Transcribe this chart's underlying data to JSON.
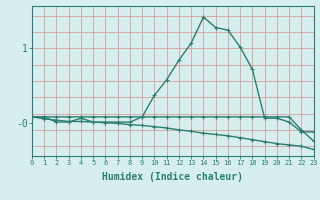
{
  "xlabel": "Humidex (Indice chaleur)",
  "bg_color": "#d6efee",
  "line_color": "#2d7d72",
  "grid_color_v": "#d4a0a0",
  "grid_color_h": "#d4a0a0",
  "ytick_labels": [
    "1",
    "-0"
  ],
  "ytick_positions": [
    1.0,
    -0.15
  ],
  "line1_x": [
    0,
    1,
    2,
    3,
    4,
    5,
    6,
    7,
    8,
    9,
    10,
    11,
    12,
    13,
    14,
    15,
    16,
    17,
    18,
    19,
    20,
    21,
    22,
    23
  ],
  "line1_y": [
    -0.05,
    -0.05,
    -0.13,
    -0.13,
    -0.07,
    -0.13,
    -0.13,
    -0.13,
    -0.13,
    -0.05,
    0.28,
    0.52,
    0.82,
    1.08,
    1.48,
    1.32,
    1.28,
    1.02,
    0.68,
    -0.07,
    -0.07,
    -0.13,
    -0.28,
    -0.28
  ],
  "line2_x": [
    0,
    1,
    2,
    3,
    4,
    5,
    6,
    7,
    8,
    9,
    10,
    11,
    12,
    13,
    14,
    15,
    16,
    17,
    18,
    19,
    20,
    21,
    22,
    23
  ],
  "line2_y": [
    -0.05,
    -0.05,
    -0.05,
    -0.05,
    -0.05,
    -0.05,
    -0.05,
    -0.05,
    -0.05,
    -0.05,
    -0.05,
    -0.05,
    -0.05,
    -0.05,
    -0.05,
    -0.05,
    -0.05,
    -0.05,
    -0.05,
    -0.05,
    -0.05,
    -0.05,
    -0.25,
    -0.42
  ],
  "line3_x": [
    0,
    1,
    2,
    3,
    4,
    5,
    6,
    7,
    8,
    9,
    10,
    11,
    12,
    13,
    14,
    15,
    16,
    17,
    18,
    19,
    20,
    21,
    22,
    23
  ],
  "line3_y": [
    -0.05,
    -0.08,
    -0.1,
    -0.12,
    -0.12,
    -0.13,
    -0.14,
    -0.15,
    -0.17,
    -0.18,
    -0.2,
    -0.22,
    -0.25,
    -0.27,
    -0.3,
    -0.32,
    -0.34,
    -0.37,
    -0.4,
    -0.43,
    -0.46,
    -0.48,
    -0.5,
    -0.55
  ],
  "xlim": [
    0,
    23
  ],
  "ylim": [
    -0.65,
    1.65
  ]
}
